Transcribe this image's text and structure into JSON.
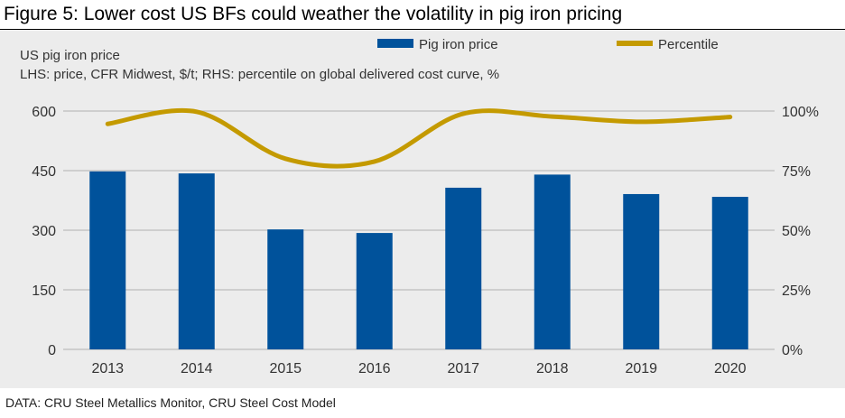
{
  "title": "Figure 5: Lower cost US BFs could weather the volatility in pig iron pricing",
  "footer": "DATA: CRU Steel Metallics Monitor, CRU Steel Cost Model",
  "chart_data": {
    "type": "bar",
    "subtitle": "US pig iron price",
    "note": "LHS: price, CFR Midwest, $/t;  RHS: percentile on global delivered cost curve, %",
    "categories": [
      "2013",
      "2014",
      "2015",
      "2016",
      "2017",
      "2018",
      "2019",
      "2020"
    ],
    "series": [
      {
        "name": "Pig iron price",
        "type": "bar",
        "axis": "left",
        "color": "#00529b",
        "values": [
          448,
          443,
          302,
          293,
          407,
          440,
          391,
          384
        ]
      },
      {
        "name": "Percentile",
        "type": "line",
        "axis": "right",
        "color": "#c49a00",
        "values": [
          94.6,
          99.7,
          80,
          78.8,
          98.9,
          97.7,
          95.5,
          97.5
        ]
      }
    ],
    "ylim": [
      0,
      600
    ],
    "yticks": [
      "0",
      "150",
      "300",
      "450",
      "600"
    ],
    "y2lim": [
      0,
      100
    ],
    "y2ticks": [
      "0%",
      "25%",
      "50%",
      "75%",
      "100%"
    ],
    "grid": true,
    "legend": "top"
  }
}
